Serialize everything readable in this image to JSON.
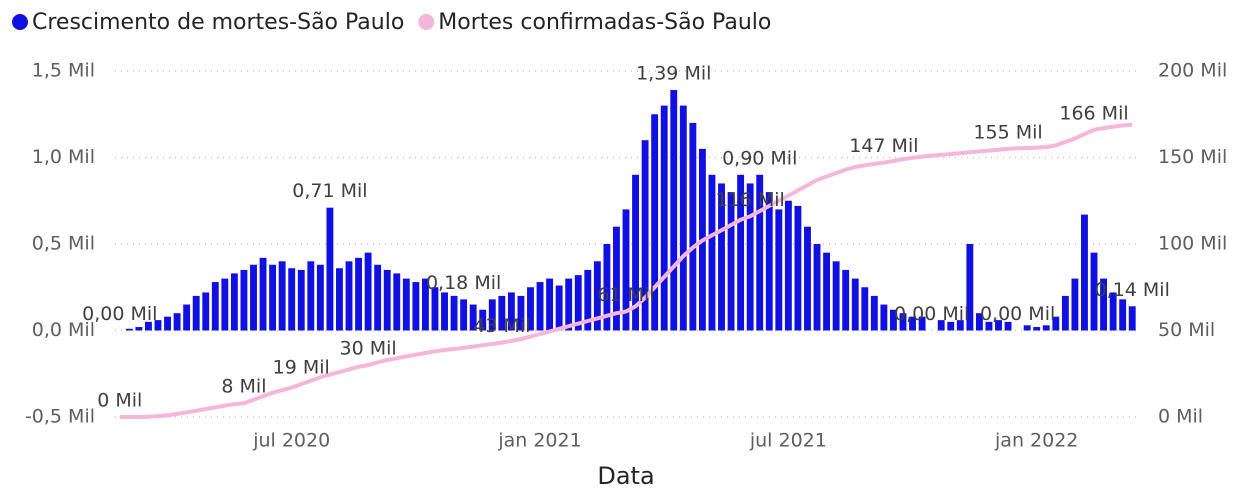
{
  "chart_data": {
    "type": "bar-line",
    "xlabel": "Data",
    "categories": [
      null,
      null,
      null,
      null,
      null,
      null,
      null,
      null,
      null,
      null,
      null,
      null,
      null,
      null,
      null,
      null,
      null,
      null,
      "jul 2020",
      null,
      null,
      null,
      null,
      null,
      null,
      null,
      null,
      null,
      null,
      null,
      null,
      null,
      null,
      null,
      null,
      null,
      null,
      null,
      null,
      null,
      null,
      null,
      null,
      null,
      "jan 2021",
      null,
      null,
      null,
      null,
      null,
      null,
      null,
      null,
      null,
      null,
      null,
      null,
      null,
      null,
      null,
      null,
      null,
      null,
      null,
      null,
      null,
      null,
      null,
      null,
      null,
      "jul 2021",
      null,
      null,
      null,
      null,
      null,
      null,
      null,
      null,
      null,
      null,
      null,
      null,
      null,
      null,
      null,
      null,
      null,
      null,
      null,
      null,
      null,
      null,
      null,
      null,
      null,
      "jan 2022",
      null,
      null,
      null,
      null,
      null,
      null,
      null,
      null,
      null,
      null
    ],
    "series": [
      {
        "name": "Crescimento de mortes-São Paulo",
        "color": "#1010e0",
        "axis": "y",
        "values": [
          0.0,
          0.01,
          0.02,
          0.05,
          0.06,
          0.08,
          0.1,
          0.15,
          0.2,
          0.22,
          0.28,
          0.3,
          0.33,
          0.35,
          0.38,
          0.42,
          0.38,
          0.4,
          0.36,
          0.35,
          0.4,
          0.38,
          0.71,
          0.36,
          0.4,
          0.42,
          0.45,
          0.38,
          0.35,
          0.33,
          0.3,
          0.28,
          0.3,
          0.25,
          0.22,
          0.2,
          0.18,
          0.15,
          0.12,
          0.18,
          0.2,
          0.22,
          0.2,
          0.25,
          0.28,
          0.3,
          0.26,
          0.3,
          0.32,
          0.35,
          0.4,
          0.5,
          0.6,
          0.7,
          0.9,
          1.1,
          1.25,
          1.3,
          1.39,
          1.3,
          1.2,
          1.05,
          0.9,
          0.85,
          0.8,
          0.9,
          0.85,
          0.9,
          0.8,
          0.7,
          0.75,
          0.72,
          0.6,
          0.5,
          0.45,
          0.4,
          0.35,
          0.3,
          0.25,
          0.2,
          0.15,
          0.12,
          0.1,
          0.08,
          0.08,
          0.0,
          0.06,
          0.05,
          0.06,
          0.5,
          0.1,
          0.05,
          0.06,
          0.05,
          0.0,
          0.03,
          0.02,
          0.03,
          0.08,
          0.2,
          0.3,
          0.67,
          0.45,
          0.3,
          0.22,
          0.18,
          0.14
        ],
        "value_labels": [
          "0,00 Mil",
          null,
          null,
          null,
          null,
          null,
          null,
          null,
          null,
          null,
          null,
          null,
          null,
          null,
          null,
          null,
          null,
          null,
          null,
          null,
          null,
          null,
          "0,71 Mil",
          null,
          null,
          null,
          null,
          null,
          null,
          null,
          null,
          null,
          null,
          null,
          null,
          null,
          "0,18 Mil",
          null,
          null,
          null,
          null,
          null,
          null,
          null,
          null,
          null,
          null,
          null,
          null,
          null,
          null,
          null,
          null,
          null,
          null,
          null,
          null,
          null,
          "1,39 Mil",
          null,
          null,
          null,
          null,
          null,
          null,
          null,
          null,
          "0,90 Mil",
          null,
          null,
          null,
          null,
          null,
          null,
          null,
          null,
          null,
          null,
          null,
          null,
          null,
          null,
          null,
          null,
          null,
          "0,00 Mil",
          null,
          null,
          null,
          null,
          null,
          null,
          null,
          null,
          "0,00 Mil",
          null,
          null,
          null,
          null,
          null,
          null,
          null,
          null,
          null,
          null,
          null,
          "0,14 Mil"
        ]
      },
      {
        "name": "Mortes confirmadas-São Paulo",
        "color": "#f4b6d9",
        "axis": "y2",
        "values": [
          0,
          0,
          0,
          0.1,
          0.5,
          1,
          1.8,
          2.7,
          3.6,
          4.6,
          5.6,
          6.6,
          7.4,
          8,
          10,
          12,
          14,
          15.5,
          17,
          19,
          21,
          23,
          24.5,
          26,
          27.5,
          29,
          30,
          31.5,
          33,
          34,
          35,
          36,
          37,
          38,
          38.7,
          39.3,
          40,
          40.7,
          41.5,
          42.2,
          43,
          44,
          45,
          46.5,
          48,
          49.5,
          51,
          52.5,
          54,
          55.5,
          57,
          58.5,
          60,
          61,
          64,
          69,
          75,
          81,
          87,
          93,
          98,
          102,
          105,
          108,
          111,
          114,
          116,
          119,
          122,
          125,
          128,
          131,
          134,
          137,
          139,
          141,
          143,
          144.5,
          145.5,
          146.3,
          147,
          148,
          149,
          149.8,
          150.5,
          151,
          151.5,
          152,
          152.5,
          153,
          153.5,
          154,
          154.5,
          155,
          155.3,
          155.5,
          155.7,
          156,
          157,
          159,
          161,
          163.5,
          166,
          167,
          167.8,
          168.5,
          169
        ],
        "value_labels": [
          "0 Mil",
          null,
          null,
          null,
          null,
          null,
          null,
          null,
          null,
          null,
          null,
          null,
          null,
          "8 Mil",
          null,
          null,
          null,
          null,
          null,
          "19 Mil",
          null,
          null,
          null,
          null,
          null,
          null,
          "30 Mil",
          null,
          null,
          null,
          null,
          null,
          null,
          null,
          null,
          null,
          null,
          null,
          null,
          null,
          "43 Mil",
          null,
          null,
          null,
          null,
          null,
          null,
          null,
          null,
          null,
          null,
          null,
          null,
          "61 Mil",
          null,
          null,
          null,
          null,
          null,
          null,
          null,
          null,
          null,
          null,
          null,
          null,
          "116 Mil",
          null,
          null,
          null,
          null,
          null,
          null,
          null,
          null,
          null,
          null,
          null,
          null,
          null,
          "147 Mil",
          null,
          null,
          null,
          null,
          null,
          null,
          null,
          null,
          null,
          null,
          null,
          null,
          "155 Mil",
          null,
          null,
          null,
          null,
          null,
          null,
          null,
          null,
          "166 Mil",
          null,
          null,
          null,
          null
        ]
      }
    ],
    "ylim": [
      -0.5,
      1.5
    ],
    "yticks": [
      {
        "value": -0.5,
        "label": "-0,5 Mil"
      },
      {
        "value": 0,
        "label": "0,0 Mil"
      },
      {
        "value": 0.5,
        "label": "0,5 Mil"
      },
      {
        "value": 1,
        "label": "1,0 Mil"
      },
      {
        "value": 1.5,
        "label": "1,5 Mil"
      }
    ],
    "y2lim": [
      0,
      200
    ],
    "y2ticks": [
      {
        "value": 0,
        "label": "0 Mil"
      },
      {
        "value": 50,
        "label": "50 Mil"
      },
      {
        "value": 100,
        "label": "100 Mil"
      },
      {
        "value": 150,
        "label": "150 Mil"
      },
      {
        "value": 200,
        "label": "200 Mil"
      }
    ],
    "grid": true,
    "legend": "top-left"
  }
}
